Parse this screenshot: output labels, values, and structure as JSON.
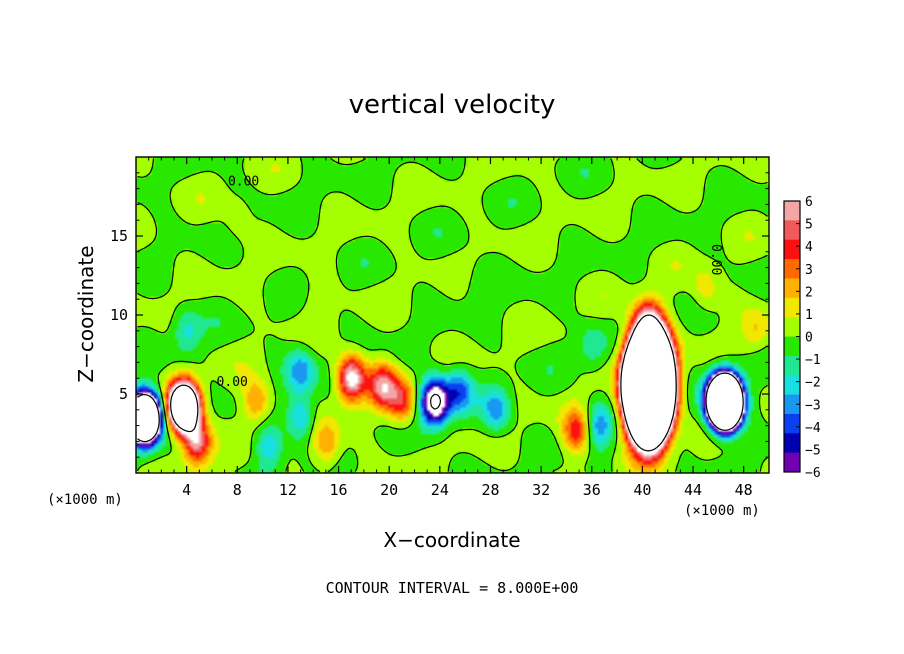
{
  "chart_data": {
    "type": "heatmap",
    "title": "vertical velocity",
    "xlabel": "X−coordinate",
    "ylabel": "Z−coordinate",
    "x_unit_left": "(×1000 m)",
    "x_unit_right": "(×1000 m)",
    "xlim": [
      0,
      50
    ],
    "ylim": [
      0,
      20
    ],
    "x_ticks": [
      4,
      8,
      12,
      16,
      20,
      24,
      28,
      32,
      36,
      40,
      44,
      48
    ],
    "x_tick_labels": [
      "4",
      "8",
      "12",
      "16",
      "20",
      "24",
      "28",
      "32",
      "36",
      "40",
      "44",
      "48"
    ],
    "y_ticks": [
      5,
      10,
      15
    ],
    "y_tick_labels": [
      "5",
      "10",
      "15"
    ],
    "colorbar": {
      "min": -6,
      "max": 6,
      "ticks": [
        6,
        5,
        4,
        3,
        2,
        1,
        0,
        -1,
        -2,
        -3,
        -4,
        -5,
        -6
      ],
      "tick_labels": [
        "6",
        "5",
        "4",
        "3",
        "2",
        "1",
        "0",
        "−1",
        "−2",
        "−3",
        "−4",
        "−5",
        "−6"
      ],
      "colors": [
        "#f4a6a6",
        "#f05a5a",
        "#ff1010",
        "#ff6a00",
        "#ffb000",
        "#f0e800",
        "#a6ff00",
        "#28e800",
        "#20e890",
        "#18e0e0",
        "#1898f0",
        "#0a40f0",
        "#0000b0",
        "#7000b0"
      ]
    },
    "contour_label": "0.00",
    "contour_levels": [
      -8,
      0,
      8
    ],
    "features": [
      {
        "x": 40.5,
        "z": 5.5,
        "w": 90
      },
      {
        "x": 40.5,
        "z": 9.5,
        "w": 4
      },
      {
        "x": 46.5,
        "z": 4.5,
        "w": -45
      },
      {
        "x": 0.7,
        "z": 3.5,
        "w": -25
      },
      {
        "x": 3.8,
        "z": 4.2,
        "w": 20
      },
      {
        "x": 4.8,
        "z": 2.0,
        "w": 6
      },
      {
        "x": 17.0,
        "z": 6.0,
        "w": 7
      },
      {
        "x": 19.5,
        "z": 5.5,
        "w": 5
      },
      {
        "x": 21.0,
        "z": 4.5,
        "w": 4
      },
      {
        "x": 23.6,
        "z": 4.5,
        "w": -9
      },
      {
        "x": 25.5,
        "z": 5.2,
        "w": -3.5
      },
      {
        "x": 28.5,
        "z": 4.0,
        "w": -3
      },
      {
        "x": 34.8,
        "z": 2.6,
        "w": 4
      },
      {
        "x": 36.5,
        "z": 3.0,
        "w": -3
      },
      {
        "x": 9.5,
        "z": 4.5,
        "w": 3
      },
      {
        "x": 10.5,
        "z": 1.6,
        "w": -2.5
      },
      {
        "x": 13.0,
        "z": 3.5,
        "w": -3
      },
      {
        "x": 15.0,
        "z": 1.8,
        "w": 3
      },
      {
        "x": 13.0,
        "z": 6.5,
        "w": -3
      },
      {
        "x": 4.0,
        "z": 9.0,
        "w": -2
      },
      {
        "x": 45.0,
        "z": 11.5,
        "w": 1.5
      },
      {
        "x": 49.0,
        "z": 9.0,
        "w": 1.5
      },
      {
        "x": 27.0,
        "z": 12.0,
        "w": -0.8
      },
      {
        "x": 36.0,
        "z": 8.0,
        "w": -1.5
      },
      {
        "x": 14.0,
        "z": 11.0,
        "w": 0.6
      },
      {
        "x": 8.0,
        "z": 16.0,
        "w": 0.8
      }
    ]
  },
  "footer": {
    "contour_interval": "CONTOUR INTERVAL = 8.000E+00"
  }
}
